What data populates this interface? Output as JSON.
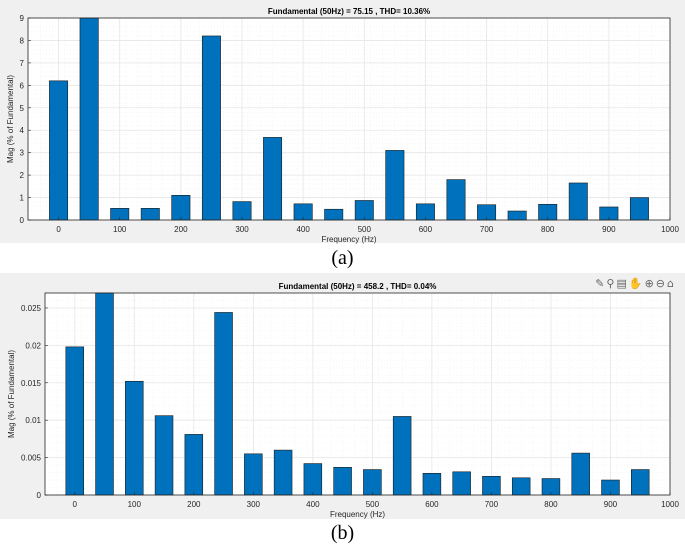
{
  "captions": {
    "a": "(a)",
    "b": "(b)"
  },
  "toolbar_icons": [
    "brush-icon",
    "data-tip-icon",
    "save-icon",
    "pan-icon",
    "zoom-in-icon",
    "zoom-out-icon",
    "home-icon"
  ],
  "toolbar_glyphs": [
    "✎",
    "⚲",
    "▤",
    "✋",
    "⊕",
    "⊖",
    "⌂"
  ],
  "colors": {
    "bar": "#0072BD",
    "panel_bg": "#f0f0f0",
    "axes_bg": "#ffffff",
    "grid": "#e6e6e6"
  },
  "chart_data": [
    {
      "type": "bar",
      "title": "Fundamental (50Hz) = 75.15 , THD= 10.36%",
      "xlabel": "Frequency (Hz)",
      "ylabel": "Mag (% of Fundamental)",
      "xlim": [
        -50,
        1000
      ],
      "ylim": [
        0,
        9
      ],
      "xticks": [
        0,
        100,
        200,
        300,
        400,
        500,
        600,
        700,
        800,
        900,
        1000
      ],
      "yticks": [
        0,
        1,
        2,
        3,
        4,
        5,
        6,
        7,
        8,
        9
      ],
      "xticklabels": [
        "0",
        "100",
        "200",
        "300",
        "400",
        "500",
        "600",
        "700",
        "800",
        "900",
        "1000"
      ],
      "yticklabels": [
        "0",
        "1",
        "2",
        "3",
        "4",
        "5",
        "6",
        "7",
        "8",
        "9"
      ],
      "grid": true,
      "x": [
        0,
        50,
        100,
        150,
        200,
        250,
        300,
        350,
        400,
        450,
        500,
        550,
        600,
        650,
        700,
        750,
        800,
        850,
        900,
        950
      ],
      "values": [
        6.2,
        9.0,
        0.52,
        0.52,
        1.1,
        8.2,
        0.82,
        3.68,
        0.72,
        0.48,
        0.87,
        3.1,
        0.72,
        1.8,
        0.68,
        0.4,
        0.7,
        1.65,
        0.58,
        1.0
      ]
    },
    {
      "type": "bar",
      "title": "Fundamental (50Hz) = 458.2 , THD= 0.04%",
      "xlabel": "Frequency (Hz)",
      "ylabel": "Mag (% of Fundamental)",
      "xlim": [
        -50,
        1000
      ],
      "ylim": [
        0,
        0.027
      ],
      "xticks": [
        0,
        100,
        200,
        300,
        400,
        500,
        600,
        700,
        800,
        900,
        1000
      ],
      "yticks": [
        0,
        0.005,
        0.01,
        0.015,
        0.02,
        0.025
      ],
      "xticklabels": [
        "0",
        "100",
        "200",
        "300",
        "400",
        "500",
        "600",
        "700",
        "800",
        "900",
        "1000"
      ],
      "yticklabels": [
        "0",
        "0.005",
        "0.01",
        "0.015",
        "0.02",
        "0.025"
      ],
      "grid": true,
      "x": [
        0,
        50,
        100,
        150,
        200,
        250,
        300,
        350,
        400,
        450,
        500,
        550,
        600,
        650,
        700,
        750,
        800,
        850,
        900,
        950
      ],
      "values": [
        0.0198,
        0.027,
        0.0152,
        0.0106,
        0.0081,
        0.0244,
        0.0055,
        0.006,
        0.0042,
        0.0037,
        0.0034,
        0.0105,
        0.0029,
        0.0031,
        0.0025,
        0.0023,
        0.0022,
        0.0056,
        0.002,
        0.0034
      ]
    }
  ]
}
